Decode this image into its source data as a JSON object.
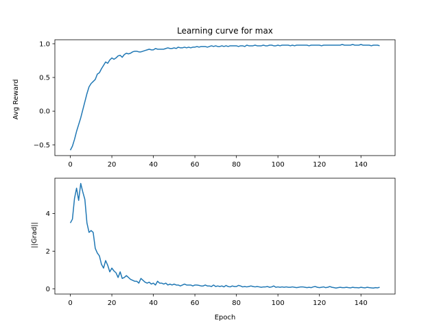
{
  "chart_data": [
    {
      "type": "line",
      "title": "Learning curve for max",
      "xlabel": "",
      "ylabel": "Avg Reward",
      "xlim": [
        -7.45,
        156.45
      ],
      "ylim": [
        -0.66,
        1.06
      ],
      "xticks": [
        0,
        20,
        40,
        60,
        80,
        100,
        120,
        140
      ],
      "xtick_labels": [
        "0",
        "20",
        "40",
        "60",
        "80",
        "100",
        "120",
        "140"
      ],
      "yticks": [
        -0.5,
        0.0,
        0.5,
        1.0
      ],
      "ytick_labels": [
        "−0.5",
        "0.0",
        "0.5",
        "1.0"
      ],
      "grid": false,
      "color": "#1f77b4",
      "series": [
        {
          "x": [
            0,
            1,
            2,
            3,
            4,
            5,
            6,
            7,
            8,
            9,
            10,
            11,
            12,
            13,
            14,
            15,
            16,
            17,
            18,
            19,
            20,
            21,
            22,
            23,
            24,
            25,
            26,
            27,
            28,
            29,
            30,
            31,
            32,
            33,
            34,
            35,
            36,
            37,
            38,
            39,
            40,
            41,
            42,
            43,
            44,
            45,
            46,
            47,
            48,
            49,
            50,
            51,
            52,
            53,
            54,
            55,
            56,
            57,
            58,
            59,
            60,
            61,
            62,
            63,
            64,
            65,
            66,
            67,
            68,
            69,
            70,
            71,
            72,
            73,
            74,
            75,
            76,
            77,
            78,
            79,
            80,
            81,
            82,
            83,
            84,
            85,
            86,
            87,
            88,
            89,
            90,
            91,
            92,
            93,
            94,
            95,
            96,
            97,
            98,
            99,
            100,
            101,
            102,
            103,
            104,
            105,
            106,
            107,
            108,
            109,
            110,
            111,
            112,
            113,
            114,
            115,
            116,
            117,
            118,
            119,
            120,
            121,
            122,
            123,
            124,
            125,
            126,
            127,
            128,
            129,
            130,
            131,
            132,
            133,
            134,
            135,
            136,
            137,
            138,
            139,
            140,
            141,
            142,
            143,
            144,
            145,
            146,
            147,
            148,
            149
          ],
          "values": [
            -0.58,
            -0.52,
            -0.42,
            -0.3,
            -0.2,
            -0.1,
            0.02,
            0.14,
            0.26,
            0.36,
            0.41,
            0.44,
            0.47,
            0.55,
            0.57,
            0.63,
            0.68,
            0.73,
            0.71,
            0.76,
            0.79,
            0.77,
            0.79,
            0.82,
            0.83,
            0.8,
            0.84,
            0.86,
            0.85,
            0.86,
            0.88,
            0.89,
            0.89,
            0.88,
            0.88,
            0.89,
            0.9,
            0.91,
            0.92,
            0.91,
            0.91,
            0.93,
            0.92,
            0.92,
            0.92,
            0.92,
            0.93,
            0.94,
            0.93,
            0.93,
            0.94,
            0.93,
            0.95,
            0.94,
            0.94,
            0.95,
            0.94,
            0.95,
            0.94,
            0.95,
            0.95,
            0.96,
            0.95,
            0.96,
            0.96,
            0.96,
            0.95,
            0.96,
            0.97,
            0.96,
            0.97,
            0.96,
            0.96,
            0.97,
            0.96,
            0.97,
            0.96,
            0.97,
            0.97,
            0.97,
            0.97,
            0.96,
            0.97,
            0.97,
            0.96,
            0.98,
            0.97,
            0.97,
            0.97,
            0.98,
            0.97,
            0.97,
            0.97,
            0.98,
            0.97,
            0.97,
            0.98,
            0.98,
            0.97,
            0.97,
            0.98,
            0.97,
            0.98,
            0.98,
            0.98,
            0.98,
            0.97,
            0.98,
            0.97,
            0.98,
            0.98,
            0.98,
            0.98,
            0.98,
            0.98,
            0.97,
            0.98,
            0.98,
            0.98,
            0.98,
            0.98,
            0.97,
            0.98,
            0.98,
            0.98,
            0.98,
            0.98,
            0.98,
            0.98,
            0.98,
            0.98,
            0.99,
            0.98,
            0.98,
            0.98,
            0.98,
            0.99,
            0.98,
            0.98,
            0.98,
            0.99,
            0.98,
            0.98,
            0.98,
            0.98,
            0.97,
            0.98,
            0.98,
            0.98,
            0.97
          ]
        }
      ]
    },
    {
      "type": "line",
      "title": "",
      "xlabel": "Epoch",
      "ylabel": "||Grad||",
      "xlim": [
        -7.45,
        156.45
      ],
      "ylim": [
        -0.28,
        5.88
      ],
      "xticks": [
        0,
        20,
        40,
        60,
        80,
        100,
        120,
        140
      ],
      "xtick_labels": [
        "0",
        "20",
        "40",
        "60",
        "80",
        "100",
        "120",
        "140"
      ],
      "yticks": [
        0,
        2,
        4
      ],
      "ytick_labels": [
        "0",
        "2",
        "4"
      ],
      "grid": false,
      "color": "#1f77b4",
      "series": [
        {
          "x": [
            0,
            1,
            2,
            3,
            4,
            5,
            6,
            7,
            8,
            9,
            10,
            11,
            12,
            13,
            14,
            15,
            16,
            17,
            18,
            19,
            20,
            21,
            22,
            23,
            24,
            25,
            26,
            27,
            28,
            29,
            30,
            31,
            32,
            33,
            34,
            35,
            36,
            37,
            38,
            39,
            40,
            41,
            42,
            43,
            44,
            45,
            46,
            47,
            48,
            49,
            50,
            51,
            52,
            53,
            54,
            55,
            56,
            57,
            58,
            59,
            60,
            61,
            62,
            63,
            64,
            65,
            66,
            67,
            68,
            69,
            70,
            71,
            72,
            73,
            74,
            75,
            76,
            77,
            78,
            79,
            80,
            81,
            82,
            83,
            84,
            85,
            86,
            87,
            88,
            89,
            90,
            91,
            92,
            93,
            94,
            95,
            96,
            97,
            98,
            99,
            100,
            101,
            102,
            103,
            104,
            105,
            106,
            107,
            108,
            109,
            110,
            111,
            112,
            113,
            114,
            115,
            116,
            117,
            118,
            119,
            120,
            121,
            122,
            123,
            124,
            125,
            126,
            127,
            128,
            129,
            130,
            131,
            132,
            133,
            134,
            135,
            136,
            137,
            138,
            139,
            140,
            141,
            142,
            143,
            144,
            145,
            146,
            147,
            148,
            149
          ],
          "values": [
            3.5,
            3.7,
            4.8,
            5.35,
            4.7,
            5.6,
            5.15,
            4.75,
            3.5,
            3.0,
            3.1,
            3.0,
            2.15,
            1.9,
            1.75,
            1.3,
            1.1,
            1.5,
            1.25,
            0.9,
            1.1,
            0.95,
            0.85,
            0.6,
            0.9,
            0.55,
            0.6,
            0.7,
            0.6,
            0.5,
            0.45,
            0.4,
            0.4,
            0.3,
            0.55,
            0.45,
            0.35,
            0.3,
            0.35,
            0.25,
            0.3,
            0.2,
            0.4,
            0.3,
            0.3,
            0.25,
            0.3,
            0.2,
            0.25,
            0.2,
            0.25,
            0.2,
            0.2,
            0.15,
            0.2,
            0.25,
            0.2,
            0.2,
            0.2,
            0.15,
            0.2,
            0.2,
            0.18,
            0.15,
            0.15,
            0.2,
            0.15,
            0.15,
            0.12,
            0.2,
            0.12,
            0.15,
            0.12,
            0.15,
            0.1,
            0.18,
            0.12,
            0.1,
            0.15,
            0.12,
            0.12,
            0.18,
            0.15,
            0.1,
            0.12,
            0.1,
            0.12,
            0.15,
            0.12,
            0.1,
            0.12,
            0.1,
            0.08,
            0.1,
            0.1,
            0.12,
            0.08,
            0.1,
            0.15,
            0.08,
            0.1,
            0.08,
            0.1,
            0.08,
            0.1,
            0.08,
            0.08,
            0.1,
            0.08,
            0.06,
            0.08,
            0.1,
            0.1,
            0.08,
            0.06,
            0.08,
            0.06,
            0.1,
            0.12,
            0.08,
            0.06,
            0.08,
            0.1,
            0.06,
            0.08,
            0.12,
            0.08,
            0.06,
            0.04,
            0.06,
            0.08,
            0.06,
            0.06,
            0.08,
            0.06,
            0.05,
            0.08,
            0.06,
            0.06,
            0.05,
            0.08,
            0.06,
            0.05,
            0.08,
            0.06,
            0.05,
            0.04,
            0.06,
            0.05,
            0.08
          ]
        }
      ]
    }
  ]
}
